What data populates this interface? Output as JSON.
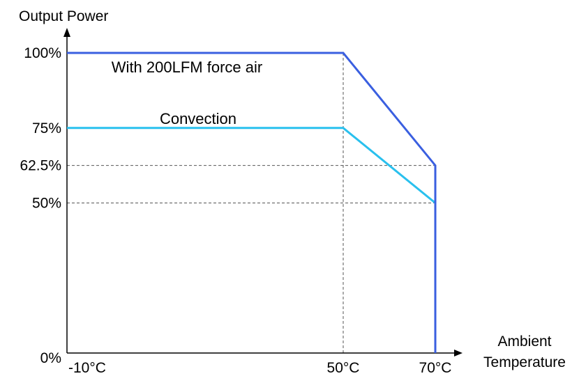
{
  "chart_data": {
    "type": "line",
    "title": "",
    "xlabel_lines": [
      "Ambient",
      "Temperature"
    ],
    "ylabel": "Output Power",
    "x_ticks": [
      {
        "value": -10,
        "label": "-10°C"
      },
      {
        "value": 50,
        "label": "50°C"
      },
      {
        "value": 70,
        "label": "70°C"
      }
    ],
    "y_ticks": [
      {
        "value": 0,
        "label": "0%"
      },
      {
        "value": 50,
        "label": "50%"
      },
      {
        "value": 62.5,
        "label": "62.5%"
      },
      {
        "value": 75,
        "label": "75%"
      },
      {
        "value": 100,
        "label": "100%"
      }
    ],
    "xlim": [
      -10,
      70
    ],
    "ylim": [
      0,
      100
    ],
    "series": [
      {
        "name": "With 200LFM force air",
        "color": "#3a5fe0",
        "x": [
          -10,
          50,
          70,
          70
        ],
        "y": [
          100,
          100,
          62.5,
          0
        ]
      },
      {
        "name": "Convection",
        "color": "#29c0ee",
        "x": [
          -10,
          50,
          70,
          70
        ],
        "y": [
          75,
          75,
          50,
          0
        ]
      }
    ],
    "guides": [
      {
        "axis": "x",
        "value": 50,
        "from": 0,
        "to": 100
      },
      {
        "axis": "y",
        "value": 62.5,
        "from": -10,
        "to": 70
      },
      {
        "axis": "y",
        "value": 50,
        "from": -10,
        "to": 70
      }
    ]
  }
}
